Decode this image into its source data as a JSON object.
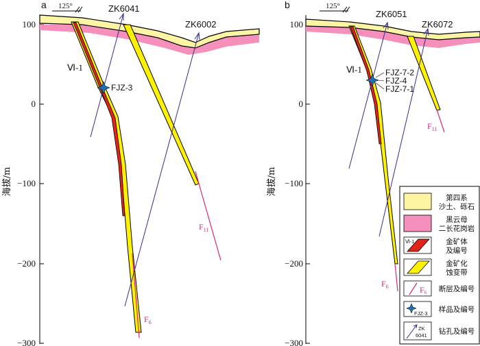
{
  "panels": [
    {
      "letter": "a",
      "orientation": "125°",
      "ylabel": "海拔/m",
      "yticks": [
        "100",
        "0",
        "−100",
        "−200",
        "−300"
      ],
      "holes": [
        "ZK6041",
        "ZK6002"
      ],
      "orebody": "Ⅵ-1",
      "samples": [
        "FJZ-3"
      ],
      "faults": [
        {
          "name": "F",
          "sub": "6"
        },
        {
          "name": "F",
          "sub": "11"
        }
      ]
    },
    {
      "letter": "b",
      "orientation": "125°",
      "ylabel": "海拔/m",
      "yticks": [
        "100",
        "0",
        "−100",
        "−200",
        "−300"
      ],
      "holes": [
        "ZK6051",
        "ZK6072"
      ],
      "orebody": "Ⅵ-1",
      "samples": [
        "FJZ-7-2",
        "FJZ-4",
        "FJZ-7-1"
      ],
      "faults": [
        {
          "name": "F",
          "sub": "6"
        },
        {
          "name": "F",
          "sub": "11"
        }
      ]
    }
  ],
  "legend": [
    {
      "line1": "第四系",
      "line2": "沙土、砾石",
      "color": "#fdf5a4"
    },
    {
      "line1": "黑云母",
      "line2": "二长花岗岩",
      "color": "#f590bd"
    },
    {
      "line1": "金矿体",
      "line2": "及编号",
      "swatch_label": "Ⅵ-1",
      "color": "#e2231a"
    },
    {
      "line1": "金矿化",
      "line2": "蚀变带",
      "color": "#fff200"
    },
    {
      "line1": "断层及编号",
      "swatch_label": "F",
      "swatch_sub": "6",
      "color": "#d6247f"
    },
    {
      "line1": "样品及编号",
      "swatch_label": "FJZ-3",
      "color": "#1f6fb2"
    },
    {
      "line1": "钻孔及编号",
      "swatch_label": "ZK",
      "swatch_label2": "6041",
      "color": "#3a2a8c"
    }
  ]
}
